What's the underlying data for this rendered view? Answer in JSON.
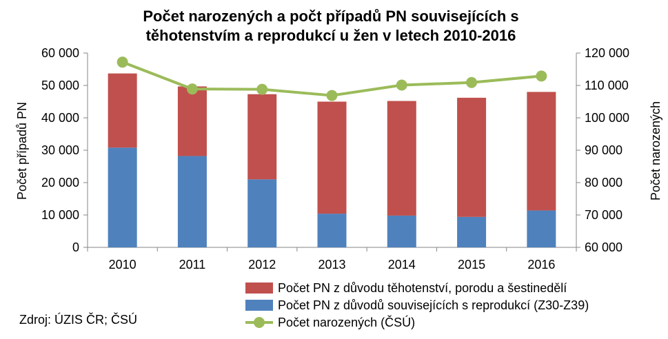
{
  "chart_data": {
    "type": "bar",
    "title_lines": [
      "Počet narozených a počt případů PN souvisejících s",
      "těhotenstvím a reprodukcí u žen v letech 2010-2016"
    ],
    "categories": [
      "2010",
      "2011",
      "2012",
      "2013",
      "2014",
      "2015",
      "2016"
    ],
    "ylabel": "Počet případů PN",
    "y2label": "Počet narozených",
    "ylim": [
      0,
      60000
    ],
    "y2lim": [
      60000,
      120000
    ],
    "yticks": [
      "0",
      "10 000",
      "20 000",
      "30 000",
      "40 000",
      "50 000",
      "60 000"
    ],
    "y2ticks": [
      "60 000",
      "70 000",
      "80 000",
      "90 000",
      "100 000",
      "110 000",
      "120 000"
    ],
    "stacked": true,
    "series": [
      {
        "name": "Počet PN z důvodů souvisejících s reprodukcí (Z30-Z39)",
        "type": "bar",
        "axis": "left",
        "color": "#4f81bd",
        "values": [
          30800,
          28200,
          21000,
          10400,
          9800,
          9400,
          11400
        ]
      },
      {
        "name": "Počet PN z důvodu těhotenství, porodu a šestinedělí",
        "type": "bar",
        "axis": "left",
        "color": "#c0504d",
        "values": [
          22900,
          21500,
          26300,
          34600,
          35400,
          36800,
          36600
        ]
      },
      {
        "name": "Počet narozených (ČSÚ)",
        "type": "line",
        "axis": "right",
        "color": "#9bbb59",
        "values": [
          117200,
          108900,
          108800,
          106900,
          110100,
          110900,
          112900
        ]
      }
    ],
    "legend_order": [
      1,
      0,
      2
    ],
    "legend_position": "bottom-right",
    "grid": false
  },
  "source_note": "Zdroj: ÚZIS ČR; ČSÚ"
}
